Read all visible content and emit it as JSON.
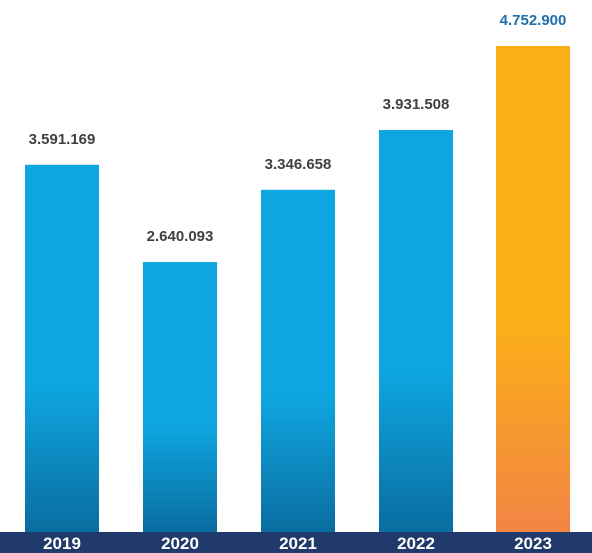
{
  "chart_data": {
    "type": "bar",
    "title": "",
    "xlabel": "",
    "ylabel": "",
    "categories": [
      "2019",
      "2020",
      "2021",
      "2022",
      "2023"
    ],
    "values": [
      3591169,
      2640093,
      3346658,
      3931508,
      4752900
    ],
    "value_labels": [
      "3.591.169",
      "2.640.093",
      "3.346.658",
      "3.931.508",
      "4.752.900"
    ],
    "ylim": [
      0,
      4752900
    ],
    "grid": false,
    "legend": "none",
    "highlight_index": 4
  },
  "colors": {
    "bar_top": "#0ea6e0",
    "bar_bottom": "#0a6da0",
    "highlight_top": "#fbb116",
    "highlight_bottom": "#f28444",
    "axis_band": "#1f3a6b",
    "label_text": "#404040",
    "highlight_label_text": "#1f6fa8",
    "year_text": "#ffffff"
  }
}
